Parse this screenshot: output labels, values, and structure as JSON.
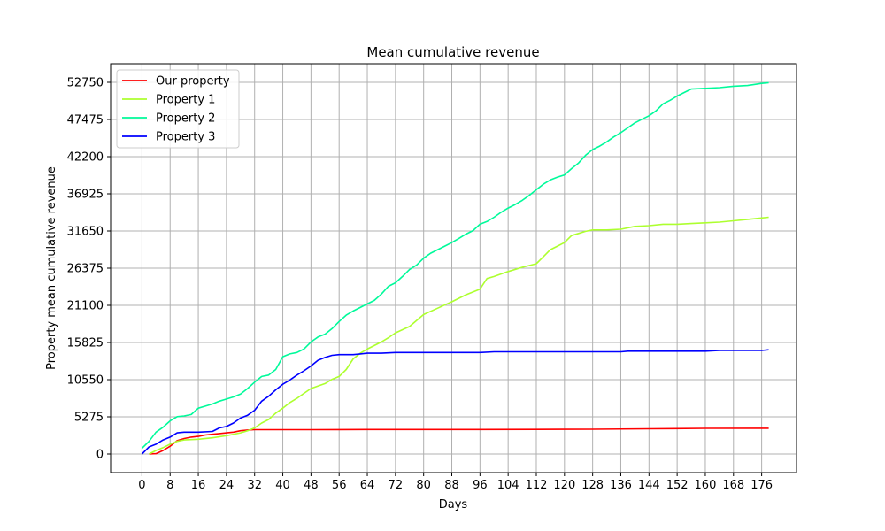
{
  "chart_data": {
    "type": "line",
    "title": "Mean cumulative revenue",
    "xlabel": "Days",
    "ylabel": "Property mean cumulative revenue",
    "xlim": [
      -8.9,
      185.9
    ],
    "ylim": [
      -2637.5,
      55387.5
    ],
    "x_ticks": [
      0,
      8,
      16,
      24,
      32,
      40,
      48,
      56,
      64,
      72,
      80,
      88,
      96,
      104,
      112,
      120,
      128,
      136,
      144,
      152,
      160,
      168,
      176
    ],
    "y_ticks": [
      0,
      5275,
      10550,
      15825,
      21100,
      26375,
      31650,
      36925,
      42200,
      47475,
      52750
    ],
    "grid": true,
    "legend_position": "top-left",
    "series": [
      {
        "name": "Our property",
        "color": "#ff0000",
        "points": [
          [
            2,
            0
          ],
          [
            4,
            50
          ],
          [
            6,
            500
          ],
          [
            8,
            1100
          ],
          [
            10,
            1900
          ],
          [
            12,
            2200
          ],
          [
            14,
            2400
          ],
          [
            16,
            2500
          ],
          [
            18,
            2700
          ],
          [
            20,
            2800
          ],
          [
            22,
            2900
          ],
          [
            24,
            3000
          ],
          [
            26,
            3100
          ],
          [
            28,
            3300
          ],
          [
            30,
            3400
          ],
          [
            32,
            3450
          ],
          [
            40,
            3450
          ],
          [
            48,
            3450
          ],
          [
            56,
            3470
          ],
          [
            64,
            3480
          ],
          [
            80,
            3480
          ],
          [
            96,
            3480
          ],
          [
            112,
            3490
          ],
          [
            128,
            3520
          ],
          [
            144,
            3580
          ],
          [
            160,
            3640
          ],
          [
            176,
            3660
          ],
          [
            178,
            3660
          ]
        ]
      },
      {
        "name": "Property 1",
        "color": "#adff2f",
        "points": [
          [
            2,
            0
          ],
          [
            4,
            500
          ],
          [
            6,
            900
          ],
          [
            8,
            1400
          ],
          [
            10,
            1800
          ],
          [
            12,
            2000
          ],
          [
            16,
            2100
          ],
          [
            20,
            2300
          ],
          [
            24,
            2600
          ],
          [
            28,
            3000
          ],
          [
            30,
            3300
          ],
          [
            32,
            3700
          ],
          [
            34,
            4400
          ],
          [
            36,
            4900
          ],
          [
            38,
            5800
          ],
          [
            40,
            6500
          ],
          [
            42,
            7300
          ],
          [
            44,
            7900
          ],
          [
            46,
            8600
          ],
          [
            48,
            9300
          ],
          [
            52,
            10000
          ],
          [
            54,
            10600
          ],
          [
            56,
            11000
          ],
          [
            58,
            12000
          ],
          [
            60,
            13500
          ],
          [
            62,
            14300
          ],
          [
            64,
            14900
          ],
          [
            66,
            15400
          ],
          [
            68,
            15900
          ],
          [
            70,
            16500
          ],
          [
            72,
            17200
          ],
          [
            76,
            18100
          ],
          [
            80,
            19800
          ],
          [
            84,
            20700
          ],
          [
            88,
            21600
          ],
          [
            92,
            22600
          ],
          [
            96,
            23400
          ],
          [
            98,
            24900
          ],
          [
            100,
            25200
          ],
          [
            104,
            25900
          ],
          [
            108,
            26500
          ],
          [
            112,
            27000
          ],
          [
            114,
            28000
          ],
          [
            116,
            29000
          ],
          [
            118,
            29500
          ],
          [
            120,
            30000
          ],
          [
            122,
            31000
          ],
          [
            124,
            31300
          ],
          [
            126,
            31600
          ],
          [
            128,
            31800
          ],
          [
            132,
            31800
          ],
          [
            136,
            31900
          ],
          [
            140,
            32300
          ],
          [
            144,
            32400
          ],
          [
            148,
            32600
          ],
          [
            152,
            32600
          ],
          [
            156,
            32700
          ],
          [
            160,
            32800
          ],
          [
            164,
            32900
          ],
          [
            168,
            33100
          ],
          [
            172,
            33300
          ],
          [
            176,
            33500
          ],
          [
            178,
            33600
          ]
        ]
      },
      {
        "name": "Property 2",
        "color": "#00fa9a",
        "points": [
          [
            0,
            800
          ],
          [
            2,
            1800
          ],
          [
            4,
            3100
          ],
          [
            6,
            3800
          ],
          [
            8,
            4700
          ],
          [
            10,
            5300
          ],
          [
            12,
            5400
          ],
          [
            14,
            5600
          ],
          [
            16,
            6500
          ],
          [
            18,
            6800
          ],
          [
            20,
            7100
          ],
          [
            22,
            7500
          ],
          [
            24,
            7800
          ],
          [
            26,
            8100
          ],
          [
            28,
            8500
          ],
          [
            30,
            9300
          ],
          [
            32,
            10200
          ],
          [
            34,
            11000
          ],
          [
            36,
            11200
          ],
          [
            38,
            12000
          ],
          [
            40,
            13800
          ],
          [
            42,
            14200
          ],
          [
            44,
            14400
          ],
          [
            46,
            14900
          ],
          [
            48,
            15900
          ],
          [
            50,
            16600
          ],
          [
            52,
            17000
          ],
          [
            54,
            17800
          ],
          [
            56,
            18800
          ],
          [
            58,
            19700
          ],
          [
            60,
            20300
          ],
          [
            62,
            20800
          ],
          [
            64,
            21300
          ],
          [
            66,
            21800
          ],
          [
            68,
            22700
          ],
          [
            70,
            23800
          ],
          [
            72,
            24300
          ],
          [
            74,
            25200
          ],
          [
            76,
            26200
          ],
          [
            78,
            26800
          ],
          [
            80,
            27800
          ],
          [
            82,
            28500
          ],
          [
            84,
            29000
          ],
          [
            86,
            29500
          ],
          [
            88,
            30000
          ],
          [
            90,
            30600
          ],
          [
            92,
            31200
          ],
          [
            94,
            31700
          ],
          [
            96,
            32600
          ],
          [
            98,
            33000
          ],
          [
            100,
            33600
          ],
          [
            102,
            34300
          ],
          [
            104,
            34900
          ],
          [
            106,
            35400
          ],
          [
            108,
            36000
          ],
          [
            110,
            36700
          ],
          [
            112,
            37500
          ],
          [
            114,
            38300
          ],
          [
            116,
            38900
          ],
          [
            118,
            39300
          ],
          [
            120,
            39600
          ],
          [
            122,
            40500
          ],
          [
            124,
            41300
          ],
          [
            126,
            42400
          ],
          [
            128,
            43200
          ],
          [
            130,
            43700
          ],
          [
            132,
            44300
          ],
          [
            134,
            45000
          ],
          [
            136,
            45600
          ],
          [
            138,
            46300
          ],
          [
            140,
            47000
          ],
          [
            142,
            47500
          ],
          [
            144,
            48000
          ],
          [
            146,
            48700
          ],
          [
            148,
            49700
          ],
          [
            150,
            50200
          ],
          [
            152,
            50800
          ],
          [
            154,
            51300
          ],
          [
            156,
            51800
          ],
          [
            160,
            51900
          ],
          [
            164,
            52000
          ],
          [
            168,
            52200
          ],
          [
            172,
            52300
          ],
          [
            176,
            52600
          ],
          [
            178,
            52700
          ]
        ]
      },
      {
        "name": "Property 3",
        "color": "#0000ff",
        "points": [
          [
            0,
            0
          ],
          [
            2,
            1000
          ],
          [
            4,
            1400
          ],
          [
            6,
            2000
          ],
          [
            8,
            2400
          ],
          [
            10,
            3000
          ],
          [
            12,
            3100
          ],
          [
            16,
            3100
          ],
          [
            20,
            3200
          ],
          [
            22,
            3700
          ],
          [
            24,
            3900
          ],
          [
            26,
            4400
          ],
          [
            28,
            5100
          ],
          [
            30,
            5500
          ],
          [
            32,
            6200
          ],
          [
            34,
            7500
          ],
          [
            36,
            8200
          ],
          [
            38,
            9100
          ],
          [
            40,
            9900
          ],
          [
            42,
            10500
          ],
          [
            44,
            11200
          ],
          [
            46,
            11800
          ],
          [
            48,
            12500
          ],
          [
            50,
            13300
          ],
          [
            52,
            13700
          ],
          [
            54,
            14000
          ],
          [
            56,
            14100
          ],
          [
            60,
            14100
          ],
          [
            62,
            14200
          ],
          [
            64,
            14300
          ],
          [
            68,
            14300
          ],
          [
            72,
            14400
          ],
          [
            80,
            14400
          ],
          [
            96,
            14400
          ],
          [
            100,
            14500
          ],
          [
            112,
            14500
          ],
          [
            128,
            14500
          ],
          [
            136,
            14500
          ],
          [
            138,
            14600
          ],
          [
            144,
            14600
          ],
          [
            160,
            14600
          ],
          [
            164,
            14700
          ],
          [
            176,
            14700
          ],
          [
            178,
            14800
          ]
        ]
      }
    ]
  }
}
